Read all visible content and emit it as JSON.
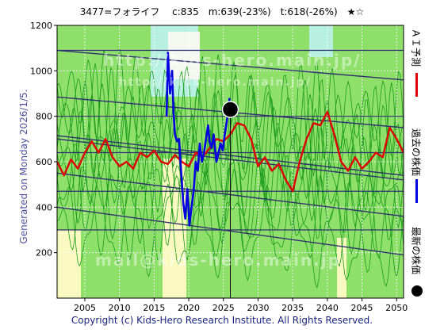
{
  "header": {
    "title": "3477=フォライフ　 c:835　m:639(-23%)　t:618(-26%)　★☆"
  },
  "side_text": {
    "generated": "Generated on Monday 2026/1/5."
  },
  "footer": {
    "copyright": "Copyright (c) Kids-Hero Research Institute. All Rights Reserved."
  },
  "legend": {
    "ai_forecast": "ＡＩ予測",
    "past_price": "過去の株価",
    "latest_price": "最新の株価"
  },
  "watermarks": {
    "w1": "http://kids-hero.main.jp/",
    "w2": "http://kids-hero.main.jp/",
    "w3": "mail@kids-hero.main.jp"
  },
  "colors": {
    "plot_green": "#8fe06a",
    "plot_yellow": "#fafac0",
    "plot_cyan": "#b7f0e0",
    "ai_line": "#e00000",
    "past_line": "#0000e0",
    "trend_line": "#303070",
    "thin_green": "#1a9a1a"
  },
  "chart_data": {
    "type": "line",
    "x_range": [
      2001,
      2051
    ],
    "y_range": [
      0,
      1200
    ],
    "x_ticks": [
      2005,
      2010,
      2015,
      2020,
      2025,
      2030,
      2035,
      2040,
      2045,
      2050
    ],
    "y_ticks": [
      200,
      400,
      600,
      800,
      1000,
      1200
    ],
    "grid": true,
    "series": [
      {
        "name": "ＡＩ予測",
        "color": "#e00000",
        "points": [
          [
            2001.0,
            600
          ],
          [
            2002.0,
            540
          ],
          [
            2003.0,
            610
          ],
          [
            2004.0,
            570
          ],
          [
            2005.0,
            640
          ],
          [
            2006.0,
            690
          ],
          [
            2007.0,
            640
          ],
          [
            2008.0,
            700
          ],
          [
            2009.0,
            620
          ],
          [
            2010.0,
            580
          ],
          [
            2011.0,
            600
          ],
          [
            2012.0,
            570
          ],
          [
            2013.0,
            640
          ],
          [
            2014.0,
            620
          ],
          [
            2015.0,
            650
          ],
          [
            2016.0,
            600
          ],
          [
            2017.0,
            590
          ],
          [
            2018.0,
            630
          ],
          [
            2019.0,
            600
          ],
          [
            2020.0,
            580
          ],
          [
            2021.0,
            640
          ],
          [
            2022.0,
            620
          ],
          [
            2023.0,
            660
          ],
          [
            2024.0,
            700
          ],
          [
            2025.0,
            690
          ],
          [
            2026.0,
            720
          ],
          [
            2027.0,
            770
          ],
          [
            2028.0,
            760
          ],
          [
            2029.0,
            700
          ],
          [
            2030.0,
            580
          ],
          [
            2031.0,
            620
          ],
          [
            2032.0,
            560
          ],
          [
            2033.0,
            590
          ],
          [
            2034.0,
            520
          ],
          [
            2035.0,
            470
          ],
          [
            2036.0,
            600
          ],
          [
            2037.0,
            700
          ],
          [
            2038.0,
            770
          ],
          [
            2039.0,
            760
          ],
          [
            2040.0,
            820
          ],
          [
            2041.0,
            720
          ],
          [
            2042.0,
            600
          ],
          [
            2043.0,
            560
          ],
          [
            2044.0,
            620
          ],
          [
            2045.0,
            570
          ],
          [
            2046.0,
            600
          ],
          [
            2047.0,
            640
          ],
          [
            2048.0,
            620
          ],
          [
            2049.0,
            750
          ],
          [
            2050.0,
            700
          ],
          [
            2051.0,
            640
          ]
        ]
      },
      {
        "name": "過去の株価",
        "color": "#0000e0",
        "points": [
          [
            2016.8,
            800
          ],
          [
            2017.0,
            1080
          ],
          [
            2017.3,
            900
          ],
          [
            2017.6,
            1000
          ],
          [
            2017.8,
            820
          ],
          [
            2018.0,
            720
          ],
          [
            2018.3,
            690
          ],
          [
            2018.6,
            700
          ],
          [
            2018.9,
            560
          ],
          [
            2019.2,
            420
          ],
          [
            2019.5,
            350
          ],
          [
            2019.8,
            480
          ],
          [
            2020.1,
            320
          ],
          [
            2020.4,
            400
          ],
          [
            2020.7,
            470
          ],
          [
            2021.0,
            600
          ],
          [
            2021.3,
            560
          ],
          [
            2021.6,
            680
          ],
          [
            2021.9,
            600
          ],
          [
            2022.2,
            640
          ],
          [
            2022.5,
            700
          ],
          [
            2022.8,
            760
          ],
          [
            2023.0,
            690
          ],
          [
            2023.3,
            660
          ],
          [
            2023.6,
            720
          ],
          [
            2024.0,
            600
          ],
          [
            2024.3,
            640
          ],
          [
            2024.6,
            680
          ],
          [
            2024.9,
            650
          ],
          [
            2025.2,
            720
          ],
          [
            2025.6,
            800
          ],
          [
            2025.9,
            880
          ]
        ]
      }
    ],
    "latest_point": {
      "x": 2026.0,
      "y": 830
    },
    "trend_lines": [
      {
        "y_start": 1090,
        "y_end": 960
      },
      {
        "y_start": 885,
        "y_end": 750
      },
      {
        "y_start": 715,
        "y_end": 540
      },
      {
        "y_start": 700,
        "y_end": 520
      },
      {
        "y_start": 550,
        "y_end": 360
      },
      {
        "y_start": 400,
        "y_end": 190
      }
    ],
    "horizontal_lines": [
      1090,
      800,
      640,
      470,
      300
    ]
  }
}
